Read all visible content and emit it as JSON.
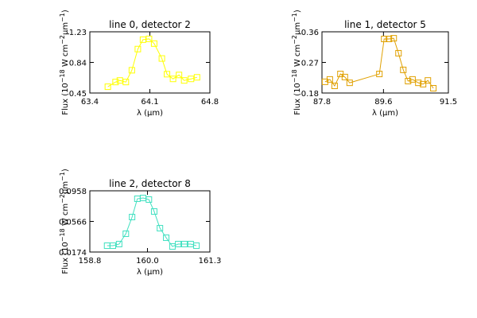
{
  "chart_data": [
    {
      "type": "line",
      "title": "line 0, detector 2",
      "xlabel": "λ (μm)",
      "ylabel": [
        "Flux (10",
        "−18",
        " W cm",
        "−2",
        "μm",
        "−1",
        ")"
      ],
      "color": "#ffff00",
      "x": [
        63.61,
        63.7,
        63.75,
        63.82,
        63.89,
        63.96,
        64.02,
        64.09,
        64.15,
        64.24,
        64.3,
        64.37,
        64.44,
        64.5,
        64.58,
        64.65
      ],
      "values": [
        0.53,
        0.59,
        0.61,
        0.59,
        0.74,
        1.01,
        1.13,
        1.14,
        1.08,
        0.89,
        0.69,
        0.63,
        0.68,
        0.61,
        0.63,
        0.65
      ],
      "xlim": [
        63.4,
        64.8
      ],
      "xticks": [
        63.4,
        64.1,
        64.8
      ],
      "ylim": [
        0.45,
        1.23
      ],
      "yticks": [
        0.45,
        0.84,
        1.23
      ]
    },
    {
      "type": "line",
      "title": "line 1, detector 5",
      "xlabel": "λ (μm)",
      "ylabel": [
        "Flux (10",
        "−18",
        " W cm",
        "−2",
        "μm",
        "−1",
        ")"
      ],
      "color": "#e0a000",
      "x": [
        87.89,
        88.03,
        88.17,
        88.34,
        88.47,
        88.61,
        89.48,
        89.62,
        89.76,
        89.9,
        90.04,
        90.18,
        90.32,
        90.45,
        90.62,
        90.76,
        90.9,
        91.06
      ],
      "values": [
        0.213,
        0.22,
        0.201,
        0.236,
        0.227,
        0.21,
        0.236,
        0.339,
        0.339,
        0.341,
        0.297,
        0.248,
        0.215,
        0.22,
        0.21,
        0.206,
        0.217,
        0.194
      ],
      "xlim": [
        87.8,
        91.5
      ],
      "xticks": [
        87.8,
        89.6,
        91.5
      ],
      "ylim": [
        0.18,
        0.36
      ],
      "yticks": [
        0.18,
        0.27,
        0.36
      ]
    },
    {
      "type": "line",
      "title": "line 2, detector 8",
      "xlabel": "λ (μm)",
      "ylabel": [
        "Flux (10",
        "−18",
        " W cm",
        "−2",
        "μm",
        "−1",
        ")"
      ],
      "color": "#40e0c0",
      "x": [
        159.16,
        159.28,
        159.41,
        159.55,
        159.68,
        159.79,
        159.91,
        160.03,
        160.14,
        160.26,
        160.39,
        160.52,
        160.64,
        160.77,
        160.9,
        161.02
      ],
      "values": [
        0.0255,
        0.0255,
        0.0276,
        0.0408,
        0.0622,
        0.0856,
        0.0866,
        0.0846,
        0.0693,
        0.0479,
        0.0357,
        0.0245,
        0.0276,
        0.0276,
        0.0276,
        0.0255
      ],
      "xlim": [
        158.8,
        161.3
      ],
      "xticks": [
        158.8,
        {
          "value": 160,
          "label": "160.0"
        },
        161.3
      ],
      "ylim": [
        0.0174,
        0.0958
      ],
      "yticks": [
        0.0174,
        0.0566,
        0.0958
      ]
    }
  ]
}
